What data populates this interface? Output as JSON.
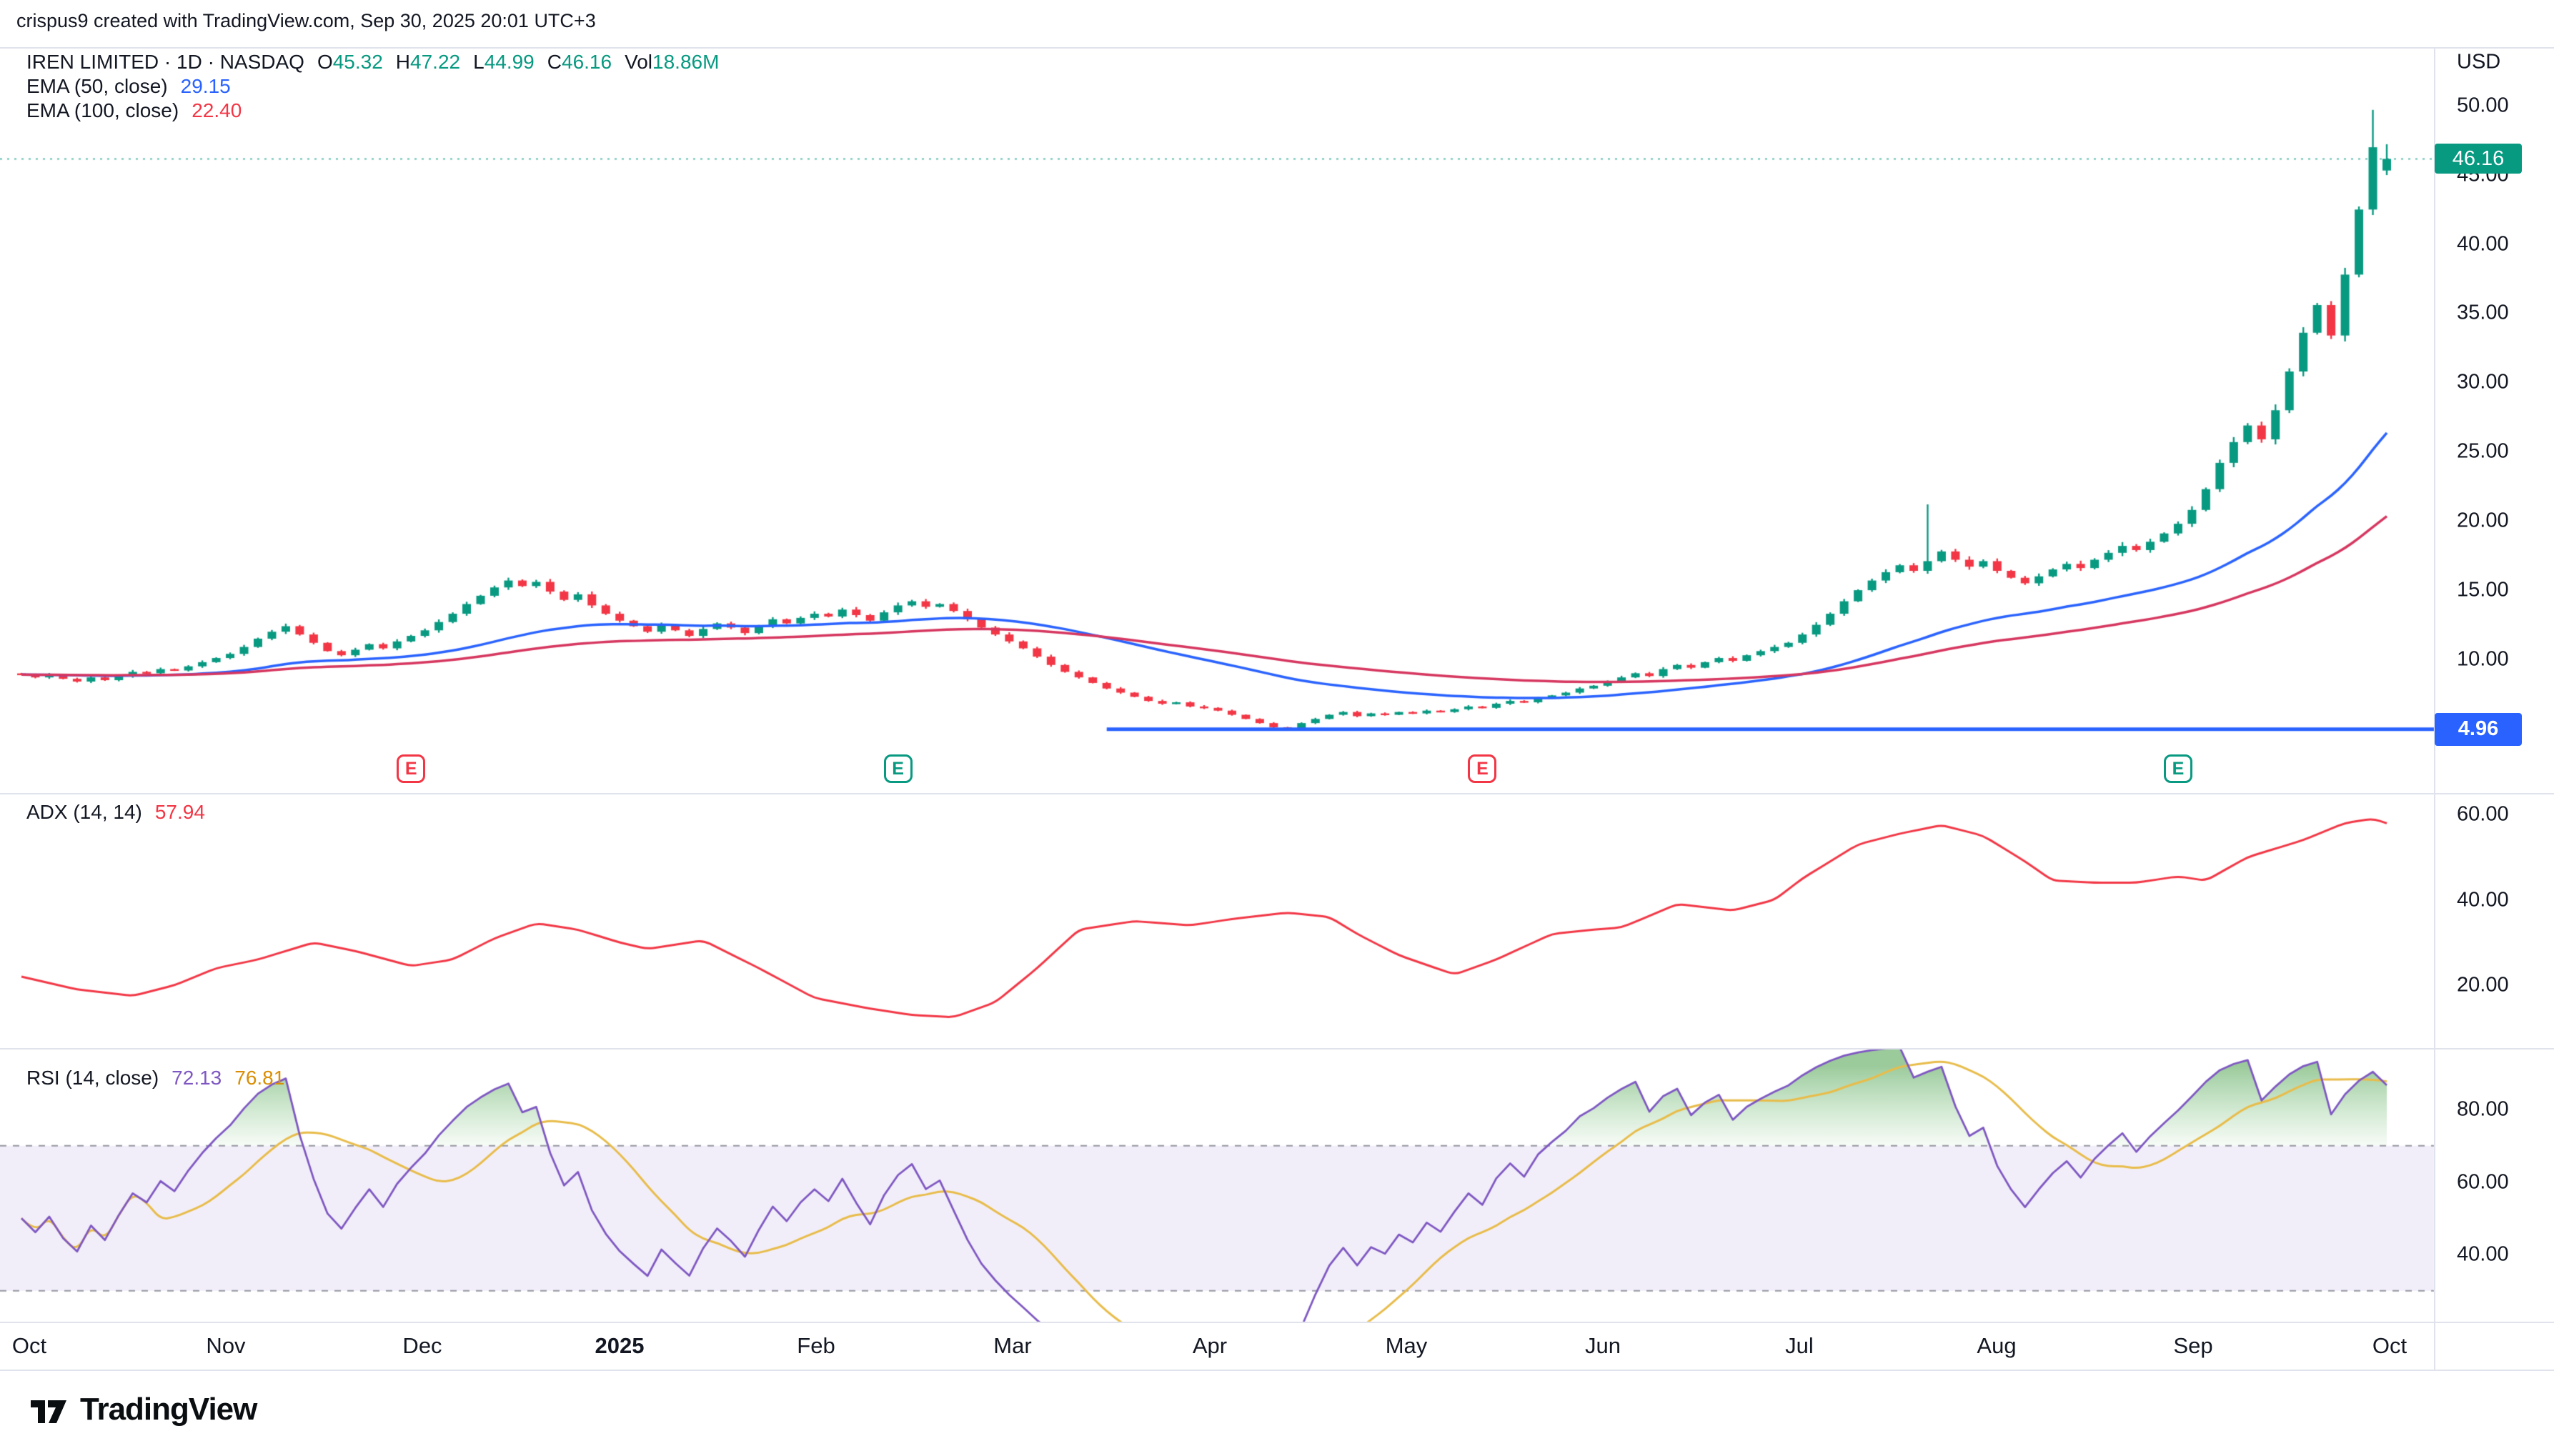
{
  "meta": {
    "attribution": "crispus9 created with TradingView.com, Sep 30, 2025 20:01 UTC+3"
  },
  "header": {
    "symbol": "IREN LIMITED · 1D · NASDAQ",
    "ohlc": {
      "o_label": "O",
      "o": "45.32",
      "h_label": "H",
      "h": "47.22",
      "l_label": "L",
      "l": "44.99",
      "c_label": "C",
      "c": "46.16",
      "vol_label": "Vol",
      "vol": "18.86M"
    },
    "ema50": {
      "label": "EMA (50, close)",
      "value": "29.15"
    },
    "ema100": {
      "label": "EMA (100, close)",
      "value": "22.40"
    }
  },
  "panes": {
    "adx": {
      "label": "ADX (14, 14)",
      "value": "57.94"
    },
    "rsi": {
      "label": "RSI (14, close)",
      "value": "72.13",
      "ma_value": "76.81"
    }
  },
  "axes": {
    "currency": "USD",
    "price_ticks": [
      "50.00",
      "45.00",
      "40.00",
      "35.00",
      "30.00",
      "25.00",
      "20.00",
      "15.00",
      "10.00"
    ],
    "adx_ticks": [
      "60.00",
      "40.00",
      "20.00"
    ],
    "rsi_ticks": [
      "80.00",
      "60.00",
      "40.00"
    ],
    "time_labels": [
      "Oct",
      "Nov",
      "Dec",
      "2025",
      "Feb",
      "Mar",
      "Apr",
      "May",
      "Jun",
      "Jul",
      "Aug",
      "Sep",
      "Oct"
    ],
    "support_label": "4.96",
    "last_price_label": "46.16"
  },
  "markers": {
    "glyph": "E"
  },
  "footer": {
    "brand": "TradingView"
  },
  "colors": {
    "up": "#089981",
    "down": "#F23645",
    "ema50": "#2962FF",
    "ema100": "#D6365F",
    "adx": "#F23645",
    "rsi": "#7E57C2",
    "rsi_ma": "#E8BC4A",
    "support": "#2962FF",
    "grid": "#E0E3EB",
    "band": "rgba(126,87,194,0.10)",
    "band_line": "#9598A1",
    "overbought_top": "rgba(34,139,34,0.45)",
    "overbought_bottom": "rgba(76,175,80,0.05)"
  },
  "chart_data": [
    {
      "type": "candlestick",
      "name": "IREN LIMITED 1D price",
      "currency": "USD",
      "ylim": [
        0.3,
        54.2
      ],
      "x_months": [
        "Oct 2024",
        "Nov 2024",
        "Dec 2024",
        "Jan 2025",
        "Feb 2025",
        "Mar 2025",
        "Apr 2025",
        "May 2025",
        "Jun 2025",
        "Jul 2025",
        "Aug 2025",
        "Sep 2025",
        "Oct 2025"
      ],
      "closes": [
        8.9,
        8.7,
        8.9,
        8.6,
        8.4,
        8.7,
        8.5,
        8.8,
        9.1,
        9.0,
        9.3,
        9.2,
        9.5,
        9.8,
        10.1,
        10.4,
        10.9,
        11.5,
        12.0,
        12.4,
        11.8,
        11.2,
        10.6,
        10.3,
        10.7,
        11.1,
        10.8,
        11.3,
        11.7,
        12.1,
        12.7,
        13.3,
        14.0,
        14.6,
        15.2,
        15.7,
        15.3,
        15.6,
        14.9,
        14.3,
        14.7,
        13.9,
        13.3,
        12.8,
        12.4,
        12.0,
        12.5,
        12.1,
        11.7,
        12.2,
        12.6,
        12.3,
        11.9,
        12.4,
        12.9,
        12.6,
        13.0,
        13.3,
        13.1,
        13.6,
        13.2,
        12.8,
        13.4,
        13.9,
        14.2,
        13.8,
        14.0,
        13.5,
        12.9,
        12.3,
        11.8,
        11.3,
        10.8,
        10.2,
        9.6,
        9.1,
        8.7,
        8.3,
        7.9,
        7.6,
        7.3,
        7.0,
        6.8,
        6.9,
        6.6,
        6.5,
        6.3,
        6.0,
        5.7,
        5.4,
        5.1,
        5.0,
        5.4,
        5.7,
        6.0,
        6.2,
        5.9,
        6.1,
        6.0,
        6.2,
        6.1,
        6.3,
        6.2,
        6.4,
        6.6,
        6.5,
        6.8,
        7.0,
        6.9,
        7.2,
        7.4,
        7.6,
        7.9,
        8.1,
        8.4,
        8.7,
        9.0,
        8.8,
        9.3,
        9.6,
        9.4,
        9.8,
        10.1,
        9.9,
        10.3,
        10.6,
        10.9,
        11.2,
        11.8,
        12.5,
        13.3,
        14.2,
        15.0,
        15.7,
        16.3,
        16.8,
        16.4,
        17.1,
        17.8,
        17.2,
        16.7,
        17.1,
        16.4,
        15.9,
        15.5,
        16.0,
        16.5,
        16.9,
        16.6,
        17.2,
        17.7,
        18.2,
        17.9,
        18.5,
        19.1,
        19.8,
        20.8,
        22.3,
        24.2,
        25.7,
        26.9,
        25.9,
        28.0,
        30.8,
        33.6,
        35.6,
        33.4,
        37.8,
        42.5,
        47.0,
        46.16
      ],
      "last_candle": {
        "o": 45.32,
        "h": 47.22,
        "l": 44.99,
        "c": 46.16
      },
      "high_spikes": [
        [
          137,
          21.2
        ],
        [
          169,
          49.7
        ]
      ],
      "support_line": {
        "price": 4.96,
        "start_index": 78
      },
      "price_line": 46.16,
      "overlays": [
        {
          "label": "EMA (50, close)",
          "period": 50,
          "last": 29.15
        },
        {
          "label": "EMA (100, close)",
          "period": 100,
          "last": 22.4
        }
      ],
      "earnings_markers": [
        {
          "index": 28,
          "tone": "red"
        },
        {
          "index": 63,
          "tone": "green"
        },
        {
          "index": 105,
          "tone": "red"
        },
        {
          "index": 155,
          "tone": "green"
        }
      ]
    },
    {
      "type": "line",
      "name": "ADX (14, 14)",
      "last": 57.94,
      "ylim": [
        5,
        65
      ],
      "ticks": [
        20,
        40,
        60
      ],
      "anchors": [
        [
          0,
          22
        ],
        [
          4,
          19
        ],
        [
          8,
          17.5
        ],
        [
          11,
          20
        ],
        [
          14,
          24
        ],
        [
          17,
          26
        ],
        [
          21,
          30
        ],
        [
          24,
          28
        ],
        [
          28,
          24.5
        ],
        [
          31,
          26
        ],
        [
          34,
          31
        ],
        [
          37,
          34.5
        ],
        [
          40,
          33
        ],
        [
          43,
          30
        ],
        [
          45,
          28.5
        ],
        [
          49,
          30.5
        ],
        [
          53,
          24
        ],
        [
          57,
          17
        ],
        [
          61,
          14.5
        ],
        [
          64,
          13
        ],
        [
          67,
          12.5
        ],
        [
          70,
          16
        ],
        [
          73,
          24
        ],
        [
          76,
          33
        ],
        [
          80,
          35
        ],
        [
          84,
          34
        ],
        [
          87,
          35.5
        ],
        [
          91,
          37
        ],
        [
          94,
          36
        ],
        [
          96,
          32
        ],
        [
          99,
          27
        ],
        [
          103,
          22.5
        ],
        [
          106,
          26
        ],
        [
          110,
          32
        ],
        [
          113,
          33
        ],
        [
          115,
          33.5
        ],
        [
          119,
          39
        ],
        [
          123,
          37.5
        ],
        [
          126,
          40
        ],
        [
          128,
          45
        ],
        [
          132,
          53
        ],
        [
          135,
          55.5
        ],
        [
          138,
          57.5
        ],
        [
          141,
          55
        ],
        [
          144,
          49
        ],
        [
          146,
          44.5
        ],
        [
          149,
          44
        ],
        [
          152,
          44
        ],
        [
          155,
          45.5
        ],
        [
          157,
          44.5
        ],
        [
          160,
          50
        ],
        [
          164,
          54
        ],
        [
          167,
          58
        ],
        [
          169,
          59
        ],
        [
          170,
          57.94
        ]
      ]
    },
    {
      "type": "line",
      "name": "RSI (14, close)",
      "last": 72.13,
      "ma_last": 76.81,
      "bands": [
        30,
        70
      ],
      "ticks": [
        40,
        60,
        80
      ],
      "derived_from": "closes"
    }
  ]
}
